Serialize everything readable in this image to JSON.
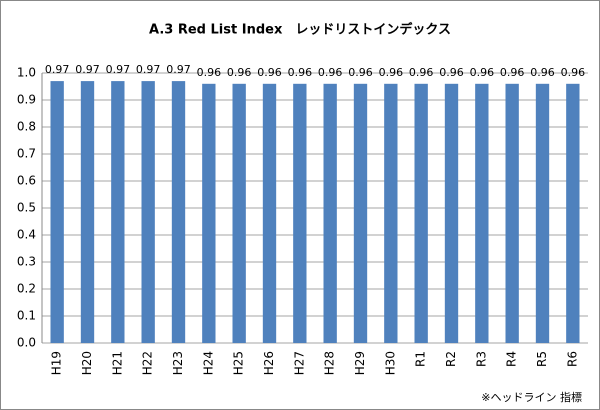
{
  "chart_data": {
    "type": "bar",
    "title": "A.3 Red List Index　レッドリストインデックス",
    "categories": [
      "H19",
      "H20",
      "H21",
      "H22",
      "H23",
      "H24",
      "H25",
      "H26",
      "H27",
      "H28",
      "H29",
      "H30",
      "R1",
      "R2",
      "R3",
      "R4",
      "R5",
      "R6"
    ],
    "values": [
      0.97,
      0.97,
      0.97,
      0.97,
      0.97,
      0.96,
      0.96,
      0.96,
      0.96,
      0.96,
      0.96,
      0.96,
      0.96,
      0.96,
      0.96,
      0.96,
      0.96,
      0.96
    ],
    "color": "#4f81bd",
    "ylim": [
      0,
      1
    ],
    "yticks": [
      {
        "value": 0,
        "label": "0.0"
      },
      0.1,
      0.2,
      0.3,
      0.4,
      0.5,
      0.6,
      0.7,
      0.8,
      0.9,
      {
        "value": 1,
        "label": "1.0"
      }
    ],
    "grid": true,
    "annotation": "※ヘッドライン 指標"
  }
}
